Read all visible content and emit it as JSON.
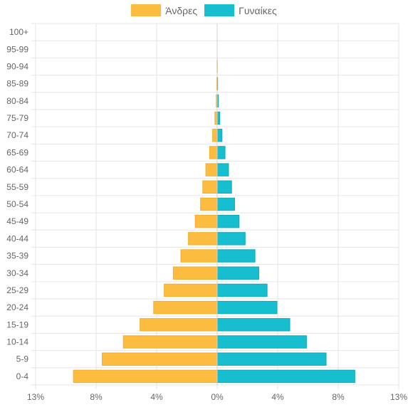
{
  "colors": {
    "men": "#fbbc3f",
    "women": "#17becf",
    "grid": "#e6e6e6",
    "text": "#666666"
  },
  "chart_data": {
    "type": "bar",
    "orientation": "horizontal",
    "subtype": "population-pyramid",
    "categories": [
      "0-4",
      "5-9",
      "10-14",
      "15-19",
      "20-24",
      "25-29",
      "30-34",
      "35-39",
      "40-44",
      "45-49",
      "50-54",
      "55-59",
      "60-64",
      "65-69",
      "70-74",
      "75-79",
      "80-84",
      "85-89",
      "90-94",
      "95-99",
      "100+"
    ],
    "series": [
      {
        "name": "Άνδρες",
        "side": "left",
        "values": [
          9.5,
          7.6,
          6.2,
          5.1,
          4.2,
          3.5,
          2.9,
          2.4,
          1.9,
          1.45,
          1.1,
          0.95,
          0.75,
          0.5,
          0.3,
          0.15,
          0.06,
          0.03,
          0.01,
          0.0,
          0.0
        ]
      },
      {
        "name": "Γυναίκες",
        "side": "right",
        "values": [
          9.1,
          7.2,
          5.9,
          4.8,
          3.95,
          3.3,
          2.75,
          2.5,
          1.85,
          1.45,
          1.15,
          0.95,
          0.75,
          0.52,
          0.32,
          0.17,
          0.08,
          0.03,
          0.01,
          0.0,
          0.0
        ]
      }
    ],
    "xlim": [
      -12,
      12
    ],
    "x_ticks": [
      "13%",
      "8%",
      "4%",
      "0%",
      "4%",
      "8%",
      "13%"
    ],
    "legend_position": "top-center",
    "grid": true
  }
}
